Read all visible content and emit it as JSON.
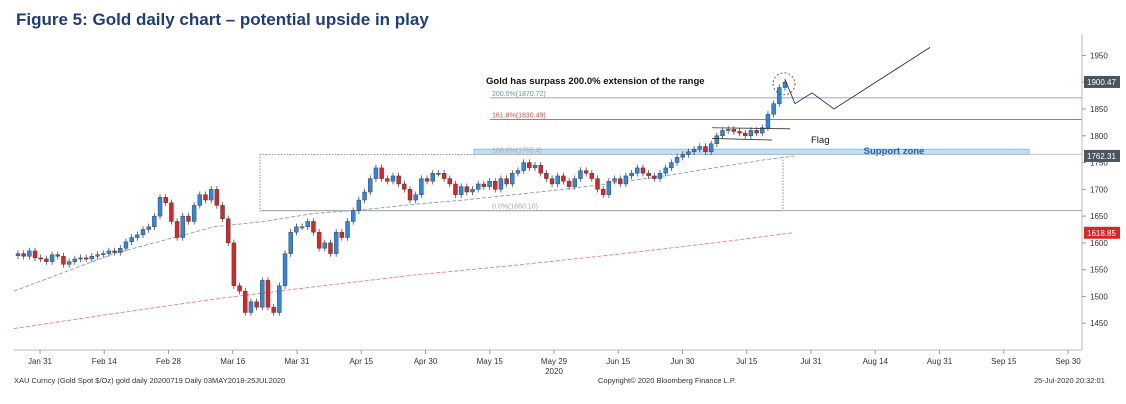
{
  "title": "Figure 5: Gold daily chart – potential upside in play",
  "footer": {
    "left": "XAU Curncy (Gold Spot  $/Oz) gold daily 20200719  Daily 03MAY2018-25JUL2020",
    "center": "Copyright© 2020 Bloomberg Finance L.P.",
    "right": "25-Jul-2020 20:32:01"
  },
  "colors": {
    "up": "#2e86de",
    "down": "#d62728",
    "ma_short": "#7f9fbf",
    "ma_long": "#e88080",
    "fib_200": "#6f8fb5",
    "fib_161": "#d45050",
    "support_fill": "#bfe0f7",
    "support_text": "#1f5fbf"
  },
  "chart_data": {
    "type": "candlestick",
    "instrument": "XAU Curncy",
    "ylim": [
      1400,
      1990
    ],
    "y_ticks": [
      1450,
      1500,
      1550,
      1600,
      1650,
      1700,
      1750,
      1800,
      1850,
      1900,
      1950
    ],
    "x_ticks": [
      "Jan 31",
      "Feb 14",
      "Feb 28",
      "Mar 16",
      "Mar 31",
      "Apr 15",
      "Apr 30",
      "May 15",
      "May 29",
      "Jun 15",
      "Jun 30",
      "Jul 15",
      "Jul 31",
      "Aug 14",
      "Aug 31",
      "Sep 15",
      "Sep 30"
    ],
    "x_year_label": "2020",
    "price_labels": [
      {
        "text": "1900.47",
        "value": 1900.47,
        "style": "dark"
      },
      {
        "text": "1762.31",
        "value": 1762.31,
        "style": "dark"
      },
      {
        "text": "1618.85",
        "value": 1618.85,
        "style": "red"
      }
    ],
    "closes": [
      1580,
      1575,
      1585,
      1572,
      1570,
      1565,
      1578,
      1575,
      1560,
      1565,
      1570,
      1572,
      1570,
      1575,
      1578,
      1580,
      1585,
      1582,
      1590,
      1602,
      1610,
      1615,
      1625,
      1630,
      1650,
      1685,
      1675,
      1640,
      1610,
      1650,
      1640,
      1670,
      1690,
      1680,
      1700,
      1670,
      1645,
      1600,
      1520,
      1510,
      1470,
      1490,
      1480,
      1530,
      1480,
      1470,
      1520,
      1580,
      1620,
      1630,
      1630,
      1640,
      1620,
      1590,
      1600,
      1580,
      1620,
      1610,
      1640,
      1660,
      1680,
      1695,
      1720,
      1740,
      1720,
      1715,
      1725,
      1710,
      1700,
      1680,
      1690,
      1720,
      1715,
      1730,
      1730,
      1720,
      1710,
      1690,
      1705,
      1695,
      1700,
      1710,
      1705,
      1715,
      1700,
      1720,
      1710,
      1730,
      1735,
      1750,
      1740,
      1745,
      1730,
      1720,
      1710,
      1725,
      1715,
      1705,
      1720,
      1735,
      1730,
      1720,
      1700,
      1690,
      1715,
      1720,
      1710,
      1725,
      1730,
      1740,
      1730,
      1725,
      1720,
      1730,
      1740,
      1750,
      1760,
      1765,
      1770,
      1775,
      1780,
      1770,
      1785,
      1800,
      1810,
      1812,
      1808,
      1805,
      1800,
      1810,
      1805,
      1815,
      1840,
      1860,
      1890,
      1900
    ],
    "ma_short": [
      {
        "x": 0,
        "y": 1510
      },
      {
        "x": 50,
        "y": 1545
      },
      {
        "x": 100,
        "y": 1580
      },
      {
        "x": 150,
        "y": 1605
      },
      {
        "x": 200,
        "y": 1630
      },
      {
        "x": 250,
        "y": 1640
      },
      {
        "x": 300,
        "y": 1655
      },
      {
        "x": 350,
        "y": 1662
      },
      {
        "x": 400,
        "y": 1672
      },
      {
        "x": 450,
        "y": 1680
      },
      {
        "x": 500,
        "y": 1690
      },
      {
        "x": 550,
        "y": 1700
      },
      {
        "x": 600,
        "y": 1712
      },
      {
        "x": 650,
        "y": 1725
      },
      {
        "x": 700,
        "y": 1740
      },
      {
        "x": 750,
        "y": 1755
      },
      {
        "x": 780,
        "y": 1762
      }
    ],
    "ma_long": [
      {
        "x": 0,
        "y": 1440
      },
      {
        "x": 100,
        "y": 1468
      },
      {
        "x": 200,
        "y": 1495
      },
      {
        "x": 300,
        "y": 1518
      },
      {
        "x": 400,
        "y": 1540
      },
      {
        "x": 500,
        "y": 1558
      },
      {
        "x": 600,
        "y": 1578
      },
      {
        "x": 700,
        "y": 1600
      },
      {
        "x": 780,
        "y": 1619
      }
    ],
    "levels": [
      {
        "label": "200.0%(1870.72)",
        "value": 1870.72,
        "kind": "fib200"
      },
      {
        "label": "161.8%(1830.49)",
        "value": 1830.49,
        "kind": "fib161"
      },
      {
        "label": "100.0%(1765.4)",
        "value": 1765.4,
        "kind": "faint"
      },
      {
        "label": "0.0%(1660.10)",
        "value": 1660.1,
        "kind": "faint"
      }
    ],
    "support_zone": {
      "label": "Support zone",
      "low": 1765,
      "high": 1775
    },
    "range_box": {
      "low": 1660,
      "high": 1765
    },
    "projection": [
      {
        "x": 785,
        "y": 1905
      },
      {
        "x": 795,
        "y": 1860
      },
      {
        "x": 812,
        "y": 1880
      },
      {
        "x": 834,
        "y": 1850
      },
      {
        "x": 930,
        "y": 1965
      }
    ],
    "annotations": [
      {
        "text": "Gold has surpass 200.0% extension of the range"
      },
      {
        "text": "Flag"
      }
    ]
  }
}
